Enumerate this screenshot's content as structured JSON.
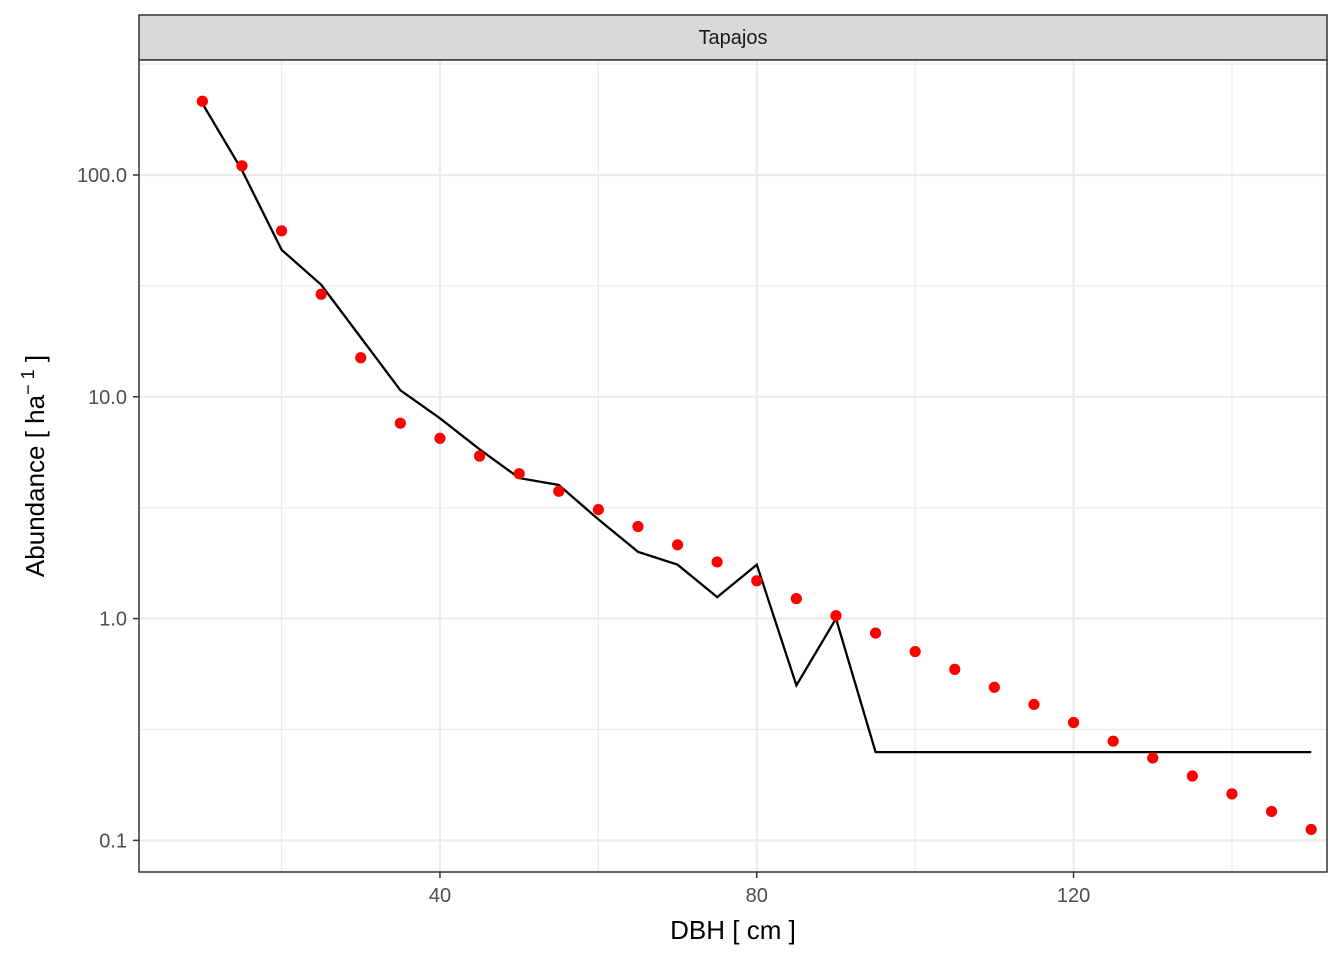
{
  "chart_data": {
    "type": "scatter",
    "facet_label": "Tapajos",
    "xlabel": "DBH [ cm ]",
    "ylabel": {
      "prefix": "Abundance [ ha",
      "superscript": "− 1",
      "suffix": " ]"
    },
    "x_scale": "linear",
    "y_scale": "log10",
    "xlim": [
      2,
      152
    ],
    "ylim": [
      0.072,
      330
    ],
    "x_ticks": [
      40,
      80,
      120
    ],
    "y_ticks": [
      0.1,
      1.0,
      10.0,
      100.0
    ],
    "y_tick_labels": [
      "0.1",
      "1.0",
      "10.0",
      "100.0"
    ],
    "grid": true,
    "colors": {
      "points": "#ff0000",
      "line": "#000000",
      "grid": "#ebebeb",
      "strip_fill": "#d9d9d9",
      "panel_border": "#333333"
    },
    "series": [
      {
        "kind": "points",
        "x": [
          10,
          15,
          20,
          25,
          30,
          35,
          40,
          45,
          50,
          55,
          60,
          65,
          70,
          75,
          80,
          85,
          90,
          95,
          100,
          105,
          110,
          115,
          120,
          125,
          130,
          135,
          140,
          145,
          150
        ],
        "y": [
          215,
          110,
          56,
          29,
          15,
          7.6,
          6.5,
          5.4,
          4.5,
          3.75,
          3.1,
          2.6,
          2.15,
          1.8,
          1.48,
          1.23,
          1.03,
          0.86,
          0.71,
          0.59,
          0.49,
          0.41,
          0.34,
          0.28,
          0.235,
          0.195,
          0.162,
          0.135,
          0.112
        ]
      },
      {
        "kind": "line",
        "x": [
          10,
          15,
          20,
          25,
          30,
          35,
          40,
          45,
          50,
          55,
          60,
          65,
          70,
          75,
          80,
          85,
          90,
          95,
          100,
          105,
          110,
          115,
          120,
          125,
          130,
          135,
          140,
          145,
          150
        ],
        "y": [
          210,
          105,
          46,
          32,
          18.5,
          10.7,
          8.0,
          5.8,
          4.3,
          4.0,
          2.8,
          2.0,
          1.75,
          1.25,
          1.75,
          0.5,
          1.0,
          0.25,
          0.25,
          0.25,
          0.25,
          0.25,
          0.25,
          0.25,
          0.25,
          0.25,
          0.25,
          0.25,
          0.25
        ]
      }
    ]
  }
}
